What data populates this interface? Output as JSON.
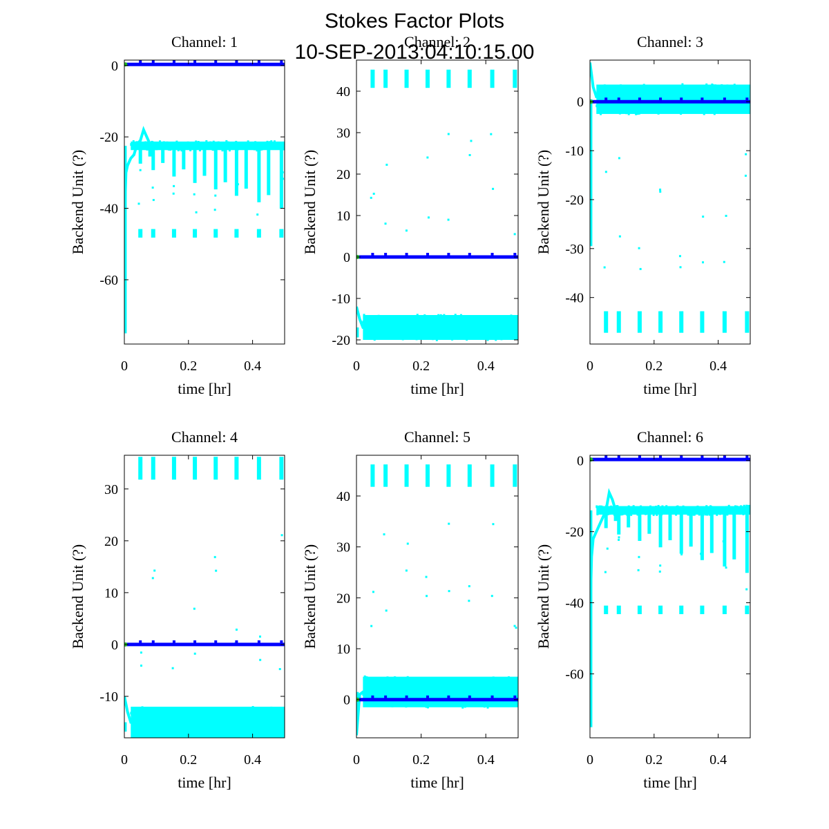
{
  "figure": {
    "title": "Stokes Factor Plots",
    "subtitle": "10-SEP-2013:04:10:15.00"
  },
  "colors": {
    "cyan": "#00ffff",
    "blue": "#0000ff",
    "green": "#22bb22"
  },
  "chart_data": [
    {
      "type": "scatter",
      "title": "Channel: 1",
      "xlabel": "time [hr]",
      "ylabel": "Backend Unit (?)",
      "xlim": [
        0,
        0.5
      ],
      "ylim": [
        -78,
        1.5
      ],
      "xticks": [
        0,
        0.2,
        0.4
      ],
      "xticklabels": [
        "0",
        "0.2",
        "0.4"
      ],
      "yticks": [
        0,
        -20,
        -40,
        -60
      ],
      "yticklabels": [
        "0",
        "-20",
        "-40",
        "-60"
      ],
      "level": -22.5,
      "series": [
        {
          "name": "stokes-cyan",
          "color": "cyan",
          "description": "Cyan trace settling around -22.5 with downward spikes",
          "points": [
            [
              0.0,
              -45
            ],
            [
              0.005,
              -30
            ],
            [
              0.01,
              -28
            ],
            [
              0.02,
              -26
            ],
            [
              0.03,
              -25
            ],
            [
              0.04,
              -22
            ],
            [
              0.05,
              -21
            ],
            [
              0.06,
              -18
            ],
            [
              0.07,
              -20
            ],
            [
              0.08,
              -22
            ],
            [
              0.1,
              -22.5
            ],
            [
              0.2,
              -22.5
            ],
            [
              0.3,
              -22.5
            ],
            [
              0.4,
              -22.5
            ],
            [
              0.5,
              -22.5
            ]
          ]
        },
        {
          "name": "stokes-blue",
          "color": "blue",
          "description": "Blue constant trace at 0",
          "points": [
            [
              0,
              0.3
            ],
            [
              0.5,
              0.3
            ]
          ]
        }
      ]
    },
    {
      "type": "scatter",
      "title": "Channel: 2",
      "xlabel": "time [hr]",
      "ylabel": "Backend Unit (?)",
      "xlim": [
        0,
        0.5
      ],
      "ylim": [
        -21,
        47.5
      ],
      "xticks": [
        0,
        0.2,
        0.4
      ],
      "xticklabels": [
        "0",
        "0.2",
        "0.4"
      ],
      "yticks": [
        40,
        30,
        20,
        10,
        0,
        -10,
        -20
      ],
      "yticklabels": [
        "40",
        "30",
        "20",
        "10",
        "0",
        "-10",
        "-20"
      ],
      "level": -17,
      "series": [
        {
          "name": "stokes-cyan",
          "color": "cyan",
          "description": "Cyan noise band around -17 with clusters near 43",
          "points": [
            [
              0.0,
              -12
            ],
            [
              0.01,
              -15
            ],
            [
              0.02,
              -17
            ],
            [
              0.1,
              -17
            ],
            [
              0.2,
              -17
            ],
            [
              0.3,
              -17
            ],
            [
              0.4,
              -17
            ],
            [
              0.5,
              -17
            ]
          ]
        },
        {
          "name": "stokes-blue",
          "color": "blue",
          "description": "Blue constant trace at 0",
          "points": [
            [
              0,
              0
            ],
            [
              0.5,
              0
            ]
          ]
        }
      ]
    },
    {
      "type": "scatter",
      "title": "Channel: 3",
      "xlabel": "time [hr]",
      "ylabel": "Backend Unit (?)",
      "xlim": [
        0,
        0.5
      ],
      "ylim": [
        -49.5,
        8.5
      ],
      "xticks": [
        0,
        0.2,
        0.4
      ],
      "xticklabels": [
        "0",
        "0.2",
        "0.4"
      ],
      "yticks": [
        0,
        -10,
        -20,
        -30,
        -40
      ],
      "yticklabels": [
        "0",
        "-10",
        "-20",
        "-30",
        "-40"
      ],
      "level": 0.5,
      "series": [
        {
          "name": "stokes-cyan",
          "color": "cyan",
          "description": "Cyan noise band around 0.5 with clusters near -45",
          "points": [
            [
              0.0,
              8
            ],
            [
              0.01,
              3
            ],
            [
              0.02,
              1
            ],
            [
              0.1,
              0.5
            ],
            [
              0.2,
              0.5
            ],
            [
              0.3,
              0.5
            ],
            [
              0.4,
              0.5
            ],
            [
              0.5,
              0.5
            ]
          ]
        },
        {
          "name": "stokes-blue",
          "color": "blue",
          "description": "Blue constant trace at 0",
          "points": [
            [
              0,
              0
            ],
            [
              0.5,
              0
            ]
          ]
        }
      ]
    },
    {
      "type": "scatter",
      "title": "Channel: 4",
      "xlabel": "time [hr]",
      "ylabel": "Backend Unit (?)",
      "xlim": [
        0,
        0.5
      ],
      "ylim": [
        -18,
        36.5
      ],
      "xticks": [
        0,
        0.2,
        0.4
      ],
      "xticklabels": [
        "0",
        "0.2",
        "0.4"
      ],
      "yticks": [
        30,
        20,
        10,
        0,
        -10
      ],
      "yticklabels": [
        "30",
        "20",
        "10",
        "0",
        "-10"
      ],
      "level": -15,
      "series": [
        {
          "name": "stokes-cyan",
          "color": "cyan",
          "description": "Cyan noise band around -15 with clusters near 34",
          "points": [
            [
              0.0,
              -10
            ],
            [
              0.01,
              -13
            ],
            [
              0.02,
              -15
            ],
            [
              0.1,
              -15
            ],
            [
              0.2,
              -15
            ],
            [
              0.3,
              -15
            ],
            [
              0.4,
              -15
            ],
            [
              0.5,
              -15
            ]
          ]
        },
        {
          "name": "stokes-blue",
          "color": "blue",
          "description": "Blue constant trace at 0",
          "points": [
            [
              0,
              0
            ],
            [
              0.5,
              0
            ]
          ]
        }
      ]
    },
    {
      "type": "scatter",
      "title": "Channel: 5",
      "xlabel": "time [hr]",
      "ylabel": "Backend Unit (?)",
      "xlim": [
        0,
        0.5
      ],
      "ylim": [
        -7.5,
        48
      ],
      "xticks": [
        0,
        0.2,
        0.4
      ],
      "xticklabels": [
        "0",
        "0.2",
        "0.4"
      ],
      "yticks": [
        40,
        30,
        20,
        10,
        0
      ],
      "yticklabels": [
        "40",
        "30",
        "20",
        "10",
        "0"
      ],
      "level": 1.5,
      "series": [
        {
          "name": "stokes-cyan",
          "color": "cyan",
          "description": "Cyan noise band around 1.5 with clusters near 44",
          "points": [
            [
              0.0,
              -7
            ],
            [
              0.01,
              1
            ],
            [
              0.02,
              1.5
            ],
            [
              0.1,
              1.5
            ],
            [
              0.2,
              1.5
            ],
            [
              0.3,
              1.5
            ],
            [
              0.4,
              1.5
            ],
            [
              0.5,
              1.5
            ]
          ]
        },
        {
          "name": "stokes-blue",
          "color": "blue",
          "description": "Blue constant trace at 0",
          "points": [
            [
              0,
              0
            ],
            [
              0.5,
              0
            ]
          ]
        }
      ]
    },
    {
      "type": "scatter",
      "title": "Channel: 6",
      "xlabel": "time [hr]",
      "ylabel": "Backend Unit (?)",
      "xlim": [
        0,
        0.5
      ],
      "ylim": [
        -78,
        1.5
      ],
      "xticks": [
        0,
        0.2,
        0.4
      ],
      "xticklabels": [
        "0",
        "0.2",
        "0.4"
      ],
      "yticks": [
        0,
        -20,
        -40,
        -60
      ],
      "yticklabels": [
        "0",
        "-20",
        "-40",
        "-60"
      ],
      "level": -14,
      "series": [
        {
          "name": "stokes-cyan",
          "color": "cyan",
          "description": "Cyan trace settling around -14 with downward spikes",
          "points": [
            [
              0.0,
              -45
            ],
            [
              0.005,
              -27
            ],
            [
              0.01,
              -22
            ],
            [
              0.02,
              -20
            ],
            [
              0.03,
              -18
            ],
            [
              0.04,
              -16
            ],
            [
              0.05,
              -14
            ],
            [
              0.06,
              -9
            ],
            [
              0.07,
              -11
            ],
            [
              0.08,
              -14
            ],
            [
              0.1,
              -14
            ],
            [
              0.2,
              -14
            ],
            [
              0.3,
              -14
            ],
            [
              0.4,
              -14
            ],
            [
              0.5,
              -14
            ]
          ]
        },
        {
          "name": "stokes-blue",
          "color": "blue",
          "description": "Blue constant trace at 0",
          "points": [
            [
              0,
              0.3
            ],
            [
              0.5,
              0.3
            ]
          ]
        }
      ]
    }
  ]
}
